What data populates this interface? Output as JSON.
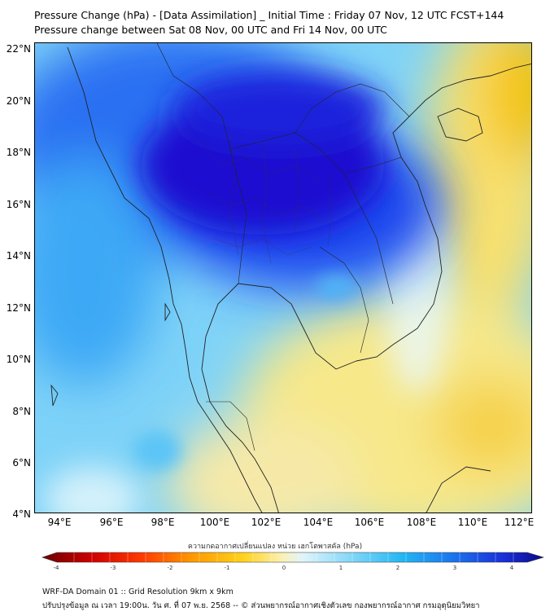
{
  "header": {
    "title": "Pressure Change (hPa) - [Data Assimilation] _ Initial Time : Friday 07 Nov, 12 UTC FCST+144",
    "subtitle": "Pressure change between Sat 08 Nov, 00 UTC and Fri 14 Nov, 00 UTC"
  },
  "map": {
    "lat_labels": [
      "22°N",
      "20°N",
      "18°N",
      "16°N",
      "14°N",
      "12°N",
      "10°N",
      "8°N",
      "6°N",
      "4°N"
    ],
    "lon_labels": [
      "94°E",
      "96°E",
      "98°E",
      "100°E",
      "102°E",
      "104°E",
      "106°E",
      "108°E",
      "110°E",
      "112°E"
    ],
    "lat_range": [
      4,
      22.2
    ],
    "lon_range": [
      93.2,
      112.4
    ],
    "colors": {
      "deep_blue": "#1a0fd6",
      "blue": "#1f55f0",
      "light_blue": "#5fc8f7",
      "pale": "#d9f2fb",
      "yellow": "#f7e88a",
      "orange_yellow": "#f5c400"
    }
  },
  "colorbar": {
    "title": "ความกดอากาศเปลี่ยนแปลง หน่วย เฮกโตพาสคัล (hPa)",
    "tick_labels": [
      "-4",
      "-3",
      "-2",
      "-1",
      "0",
      "1",
      "2",
      "3",
      "4"
    ],
    "range": [
      -4,
      4
    ]
  },
  "footer": {
    "line1": "WRF-DA Domain 01 :: Grid Resolution 9km x 9km",
    "line2": "ปรับปรุงข้อมูล ณ เวลา 19:00น. วัน ศ. ที่ 07 พ.ย. 2568 -- © ส่วนพยากรณ์อากาศเชิงตัวเลข กองพยากรณ์อากาศ กรมอุตุนิยมวิทยา"
  }
}
